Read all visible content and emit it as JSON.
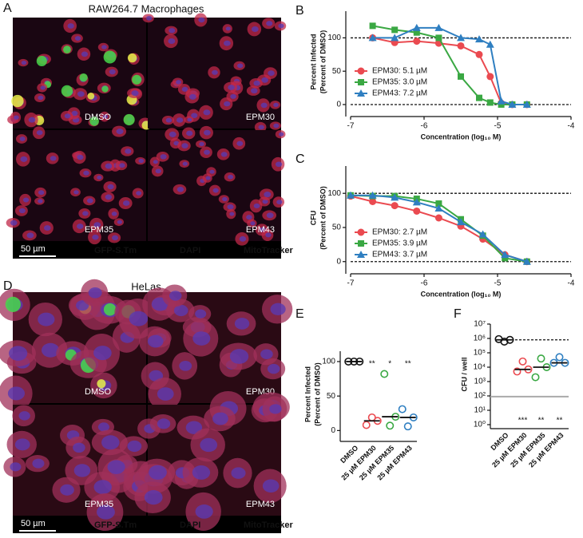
{
  "figure": {
    "micrographs": [
      {
        "letter": "A",
        "title": "RAW264.7 Macrophages",
        "tiles": [
          "DMSO",
          "EPM30",
          "EPM35",
          "EPM43"
        ],
        "scale_bar": "50 µm",
        "stains": [
          {
            "name": "GFP-S.Tm",
            "color": "#3ed14e"
          },
          {
            "name": "DAPI",
            "color": "#4a5cff"
          },
          {
            "name": "MitoTracker",
            "color": "#f0344a"
          }
        ]
      },
      {
        "letter": "D",
        "title": "HeLas",
        "tiles": [
          "DMSO",
          "EPM30",
          "EPM35",
          "EPM43"
        ],
        "scale_bar": "50 µm",
        "stains": [
          {
            "name": "GFP-S.Tm",
            "color": "#3ed14e"
          },
          {
            "name": "DAPI",
            "color": "#4a5cff"
          },
          {
            "name": "MitoTracker",
            "color": "#f0344a"
          }
        ]
      }
    ]
  },
  "chart_data": [
    {
      "letter": "B",
      "type": "line",
      "x_label": "Concentration (log₁₀ M)",
      "y_label": [
        "Percent Infected",
        "(Percent of DMSO)"
      ],
      "xlim": [
        -7,
        -4
      ],
      "xticks": [
        -7,
        -6,
        -5,
        -4
      ],
      "ylim": [
        -12,
        140
      ],
      "yticks": [
        0,
        50,
        100
      ],
      "ref_lines": [
        0,
        100
      ],
      "x": [
        -6.7,
        -6.4,
        -6.1,
        -5.8,
        -5.5,
        -5.25,
        -5.1,
        -4.95,
        -4.8,
        -4.6
      ],
      "series": [
        {
          "name": "EPM30: 5.1 µM",
          "color": "#ea4a50",
          "marker": "circle",
          "values": [
            100,
            93,
            95,
            92,
            88,
            75,
            42,
            2,
            0,
            0
          ]
        },
        {
          "name": "EPM35: 3.0 µM",
          "color": "#3aa843",
          "marker": "square",
          "values": [
            118,
            112,
            108,
            100,
            42,
            10,
            3,
            0,
            0,
            0
          ]
        },
        {
          "name": "EPM43: 7.2 µM",
          "color": "#2f7fc1",
          "marker": "triangle",
          "values": [
            100,
            100,
            115,
            115,
            100,
            98,
            90,
            5,
            0,
            0
          ]
        }
      ]
    },
    {
      "letter": "C",
      "type": "line",
      "x_label": "Concentration (log₁₀ M)",
      "y_label": [
        "CFU",
        "(Percent of DMSO)"
      ],
      "xlim": [
        -7,
        -4
      ],
      "xticks": [
        -7,
        -6,
        -5,
        -4
      ],
      "ylim": [
        -12,
        140
      ],
      "yticks": [
        0,
        50,
        100
      ],
      "ref_lines": [
        0,
        100
      ],
      "x": [
        -7.0,
        -6.7,
        -6.4,
        -6.1,
        -5.8,
        -5.5,
        -5.2,
        -4.9,
        -4.6
      ],
      "series": [
        {
          "name": "EPM30: 2.7 µM",
          "color": "#ea4a50",
          "marker": "circle",
          "values": [
            96,
            88,
            82,
            74,
            64,
            52,
            33,
            10,
            0
          ]
        },
        {
          "name": "EPM35: 3.9 µM",
          "color": "#3aa843",
          "marker": "square",
          "values": [
            97,
            96,
            96,
            92,
            85,
            62,
            38,
            5,
            0
          ]
        },
        {
          "name": "EPM43: 3.7 µM",
          "color": "#2f7fc1",
          "marker": "triangle",
          "values": [
            97,
            97,
            94,
            87,
            78,
            58,
            40,
            10,
            0
          ]
        }
      ]
    },
    {
      "letter": "E",
      "type": "strip",
      "y_label": [
        "Percent Infected",
        "(Percent of DMSO)"
      ],
      "ylim": [
        -10,
        115
      ],
      "yticks": [
        0,
        50,
        100
      ],
      "categories": [
        "DMSO",
        "25 µM EPM30",
        "25 µM EPM35",
        "25 µM EPM43"
      ],
      "series": [
        {
          "color": "#111111",
          "values": [
            100,
            100,
            100
          ]
        },
        {
          "color": "#ea4a50",
          "values": [
            8,
            19,
            14
          ]
        },
        {
          "color": "#3aa843",
          "values": [
            82,
            7,
            20
          ]
        },
        {
          "color": "#2f7fc1",
          "values": [
            31,
            6,
            19
          ]
        }
      ],
      "medians": [
        100,
        14,
        20,
        19
      ],
      "significance": [
        null,
        "**",
        "*",
        "**"
      ]
    },
    {
      "letter": "F",
      "type": "strip",
      "y_label": [
        "CFU / well"
      ],
      "log_y": true,
      "ylim": [
        1,
        10000000
      ],
      "yticks": [
        {
          "value": 1,
          "label": "10⁰"
        },
        {
          "value": 10,
          "label": "10¹"
        },
        {
          "value": 100,
          "label": "10²"
        },
        {
          "value": 1000,
          "label": "10³"
        },
        {
          "value": 10000,
          "label": "10⁴"
        },
        {
          "value": 100000,
          "label": "10⁵"
        },
        {
          "value": 1000000,
          "label": "10⁶"
        },
        {
          "value": 10000000,
          "label": "10⁷"
        }
      ],
      "ref_lines": [
        800000
      ],
      "detection_limit": 90,
      "categories": [
        "DMSO",
        "25 µM EPM30",
        "25 µM EPM35",
        "25 µM EPM43"
      ],
      "series": [
        {
          "color": "#111111",
          "values": [
            900000,
            600000,
            800000
          ]
        },
        {
          "color": "#ea4a50",
          "values": [
            5000,
            25000,
            7000
          ]
        },
        {
          "color": "#3aa843",
          "values": [
            2000,
            40000,
            10000
          ]
        },
        {
          "color": "#2f7fc1",
          "values": [
            20000,
            50000,
            20000
          ]
        }
      ],
      "medians": [
        800000,
        7000,
        10000,
        20000
      ],
      "significance": [
        null,
        "***",
        "**",
        "**"
      ]
    }
  ]
}
